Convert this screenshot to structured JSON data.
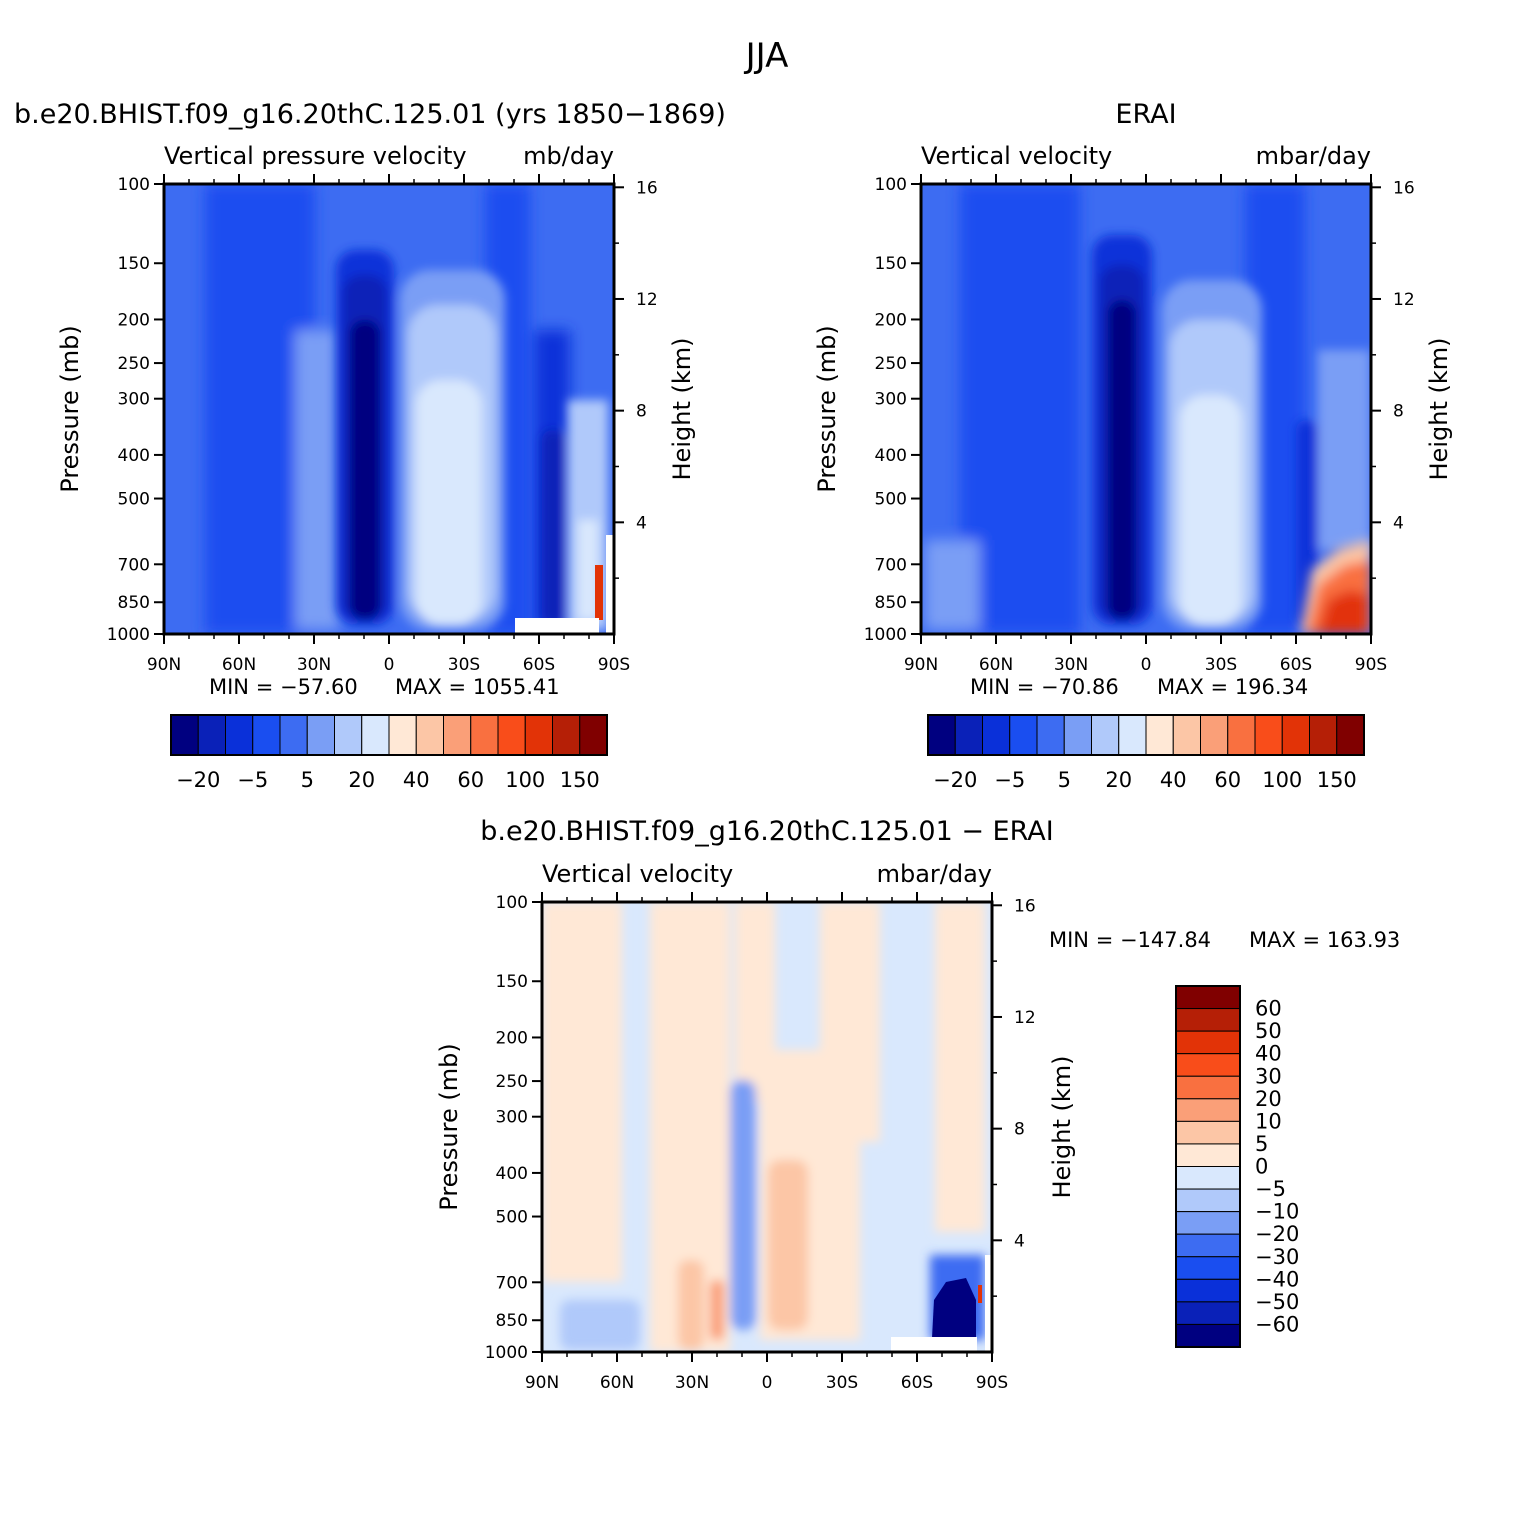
{
  "figure": {
    "title": "JJA"
  },
  "chart_data": [
    {
      "type": "heatmap",
      "title": "b.e20.BHIST.f09_g16.20thC.125.01 (yrs 1850−1869)",
      "left_subtitle": "Vertical pressure velocity",
      "right_subtitle": "mb/day",
      "xlabel": "",
      "ylabel": "Pressure (mb)",
      "y2label": "Height (km)",
      "x_ticks": [
        "90N",
        "60N",
        "30N",
        "0",
        "30S",
        "60S",
        "90S"
      ],
      "y_ticks": [
        "100",
        "150",
        "200",
        "250",
        "300",
        "400",
        "500",
        "700",
        "850",
        "1000"
      ],
      "y2_ticks": [
        "16",
        "12",
        "8",
        "4"
      ],
      "xlim": [
        90,
        -90
      ],
      "ylim": [
        1000,
        100
      ],
      "y_scale": "log",
      "stats": {
        "min_label": "MIN = −57.60",
        "max_label": "MAX = 1055.41"
      },
      "colorbar": {
        "orientation": "horizontal",
        "labels": [
          "−20",
          "−5",
          "5",
          "20",
          "40",
          "60",
          "100",
          "150"
        ],
        "colors": [
          "#000080",
          "#0a21b8",
          "#0a30d9",
          "#1a4ef0",
          "#3d6cf2",
          "#7a9ef5",
          "#b0c9fa",
          "#d9e8fd",
          "#ffe8d6",
          "#fcc6a6",
          "#fa9f78",
          "#f97040",
          "#f94d1a",
          "#e23307",
          "#b51f06",
          "#800000"
        ]
      }
    },
    {
      "type": "heatmap",
      "title": "ERAI",
      "left_subtitle": "Vertical velocity",
      "right_subtitle": "mbar/day",
      "xlabel": "",
      "ylabel": "Pressure (mb)",
      "y2label": "Height (km)",
      "x_ticks": [
        "90N",
        "60N",
        "30N",
        "0",
        "30S",
        "60S",
        "90S"
      ],
      "y_ticks": [
        "100",
        "150",
        "200",
        "250",
        "300",
        "400",
        "500",
        "700",
        "850",
        "1000"
      ],
      "y2_ticks": [
        "16",
        "12",
        "8",
        "4"
      ],
      "xlim": [
        90,
        -90
      ],
      "ylim": [
        1000,
        100
      ],
      "y_scale": "log",
      "stats": {
        "min_label": "MIN = −70.86",
        "max_label": "MAX = 196.34"
      },
      "colorbar": {
        "orientation": "horizontal",
        "labels": [
          "−20",
          "−5",
          "5",
          "20",
          "40",
          "60",
          "100",
          "150"
        ],
        "colors": [
          "#000080",
          "#0a21b8",
          "#0a30d9",
          "#1a4ef0",
          "#3d6cf2",
          "#7a9ef5",
          "#b0c9fa",
          "#d9e8fd",
          "#ffe8d6",
          "#fcc6a6",
          "#fa9f78",
          "#f97040",
          "#f94d1a",
          "#e23307",
          "#b51f06",
          "#800000"
        ]
      }
    },
    {
      "type": "heatmap",
      "title": "b.e20.BHIST.f09_g16.20thC.125.01 − ERAI",
      "left_subtitle": "Vertical velocity",
      "right_subtitle": "mbar/day",
      "xlabel": "",
      "ylabel": "Pressure (mb)",
      "y2label": "Height (km)",
      "x_ticks": [
        "90N",
        "60N",
        "30N",
        "0",
        "30S",
        "60S",
        "90S"
      ],
      "y_ticks": [
        "100",
        "150",
        "200",
        "250",
        "300",
        "400",
        "500",
        "700",
        "850",
        "1000"
      ],
      "y2_ticks": [
        "16",
        "12",
        "8",
        "4"
      ],
      "xlim": [
        90,
        -90
      ],
      "ylim": [
        1000,
        100
      ],
      "y_scale": "log",
      "stats": {
        "min_label": "MIN = −147.84",
        "max_label": "MAX = 163.93"
      },
      "colorbar": {
        "orientation": "vertical",
        "labels": [
          "60",
          "50",
          "40",
          "30",
          "20",
          "10",
          "5",
          "0",
          "−5",
          "−10",
          "−20",
          "−30",
          "−40",
          "−50",
          "−60"
        ],
        "colors": [
          "#800000",
          "#b51f06",
          "#e23307",
          "#f94d1a",
          "#f97040",
          "#fa9f78",
          "#fcc6a6",
          "#ffe8d6",
          "#d9e8fd",
          "#b0c9fa",
          "#7a9ef5",
          "#3d6cf2",
          "#1a4ef0",
          "#0a30d9",
          "#0a21b8",
          "#000080"
        ]
      }
    }
  ]
}
